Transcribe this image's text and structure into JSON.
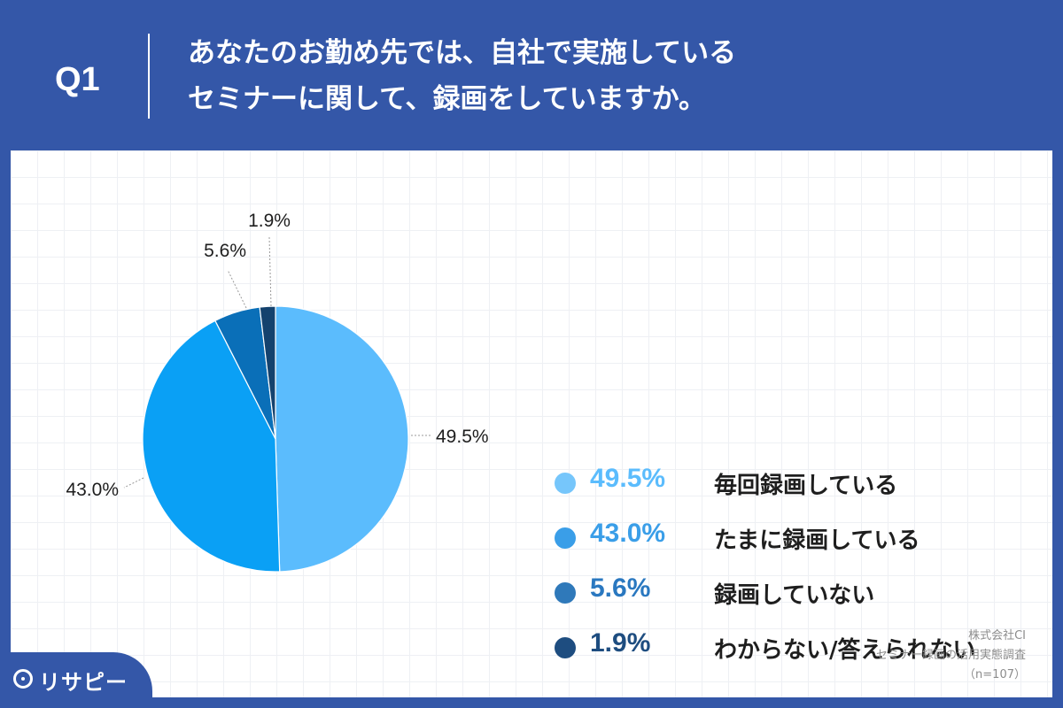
{
  "header": {
    "q_label": "Q1",
    "question_line1": "あなたのお勤め先では、自社で実施している",
    "question_line2": "セミナーに関して、録画をしていますか。"
  },
  "chart_data": {
    "type": "pie",
    "categories": [
      "毎回録画している",
      "たまに録画している",
      "録画していない",
      "わからない/答えられない"
    ],
    "values": [
      49.5,
      43.0,
      5.6,
      1.9
    ],
    "value_labels": [
      "49.5%",
      "43.0%",
      "5.6%",
      "1.9%"
    ],
    "colors": [
      "#5bbcfd",
      "#0aa0f5",
      "#0a6fb8",
      "#14426e"
    ],
    "start_angle_deg": 0,
    "direction": "clockwise",
    "legend_position": "right"
  },
  "legend": {
    "pct_colors": [
      "#5bbcfd",
      "#3a9ee8",
      "#2a78c0",
      "#1e4d80"
    ],
    "dot_colors": [
      "#76c6fb",
      "#3a9ee8",
      "#2f79ba",
      "#1e4d80"
    ]
  },
  "source": {
    "line1": "株式会社CI",
    "line2": "セミナー録画の活用実態調査",
    "line3": "（n=107）"
  },
  "logo": {
    "text": "リサピー",
    "icon": "map-pin-icon"
  }
}
